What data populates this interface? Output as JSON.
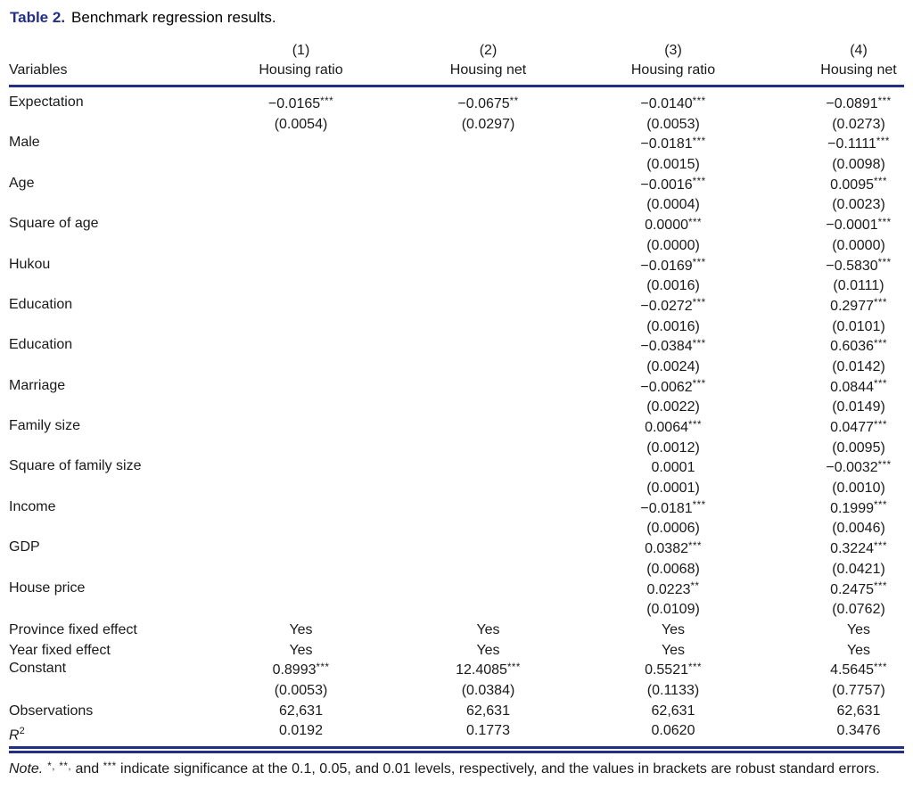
{
  "title": {
    "label": "Table 2.",
    "text": "Benchmark regression results."
  },
  "colors": {
    "accent": "#232e85"
  },
  "table": {
    "variables_header": "Variables",
    "columns": [
      {
        "num": "(1)",
        "name": "Housing ratio"
      },
      {
        "num": "(2)",
        "name": "Housing net"
      },
      {
        "num": "(3)",
        "name": "Housing ratio"
      },
      {
        "num": "(4)",
        "name": "Housing net"
      }
    ],
    "rows": [
      {
        "label": "Expectation",
        "cells": [
          {
            "v": "−0.0165",
            "s": "***",
            "se": "(0.0054)"
          },
          {
            "v": "−0.0675",
            "s": "**",
            "se": "(0.0297)"
          },
          {
            "v": "−0.0140",
            "s": "***",
            "se": "(0.0053)"
          },
          {
            "v": "−0.0891",
            "s": "***",
            "se": "(0.0273)"
          }
        ]
      },
      {
        "label": "Male",
        "cells": [
          {
            "v": "",
            "s": "",
            "se": ""
          },
          {
            "v": "",
            "s": "",
            "se": ""
          },
          {
            "v": "−0.0181",
            "s": "***",
            "se": "(0.0015)"
          },
          {
            "v": "−0.1111",
            "s": "***",
            "se": "(0.0098)"
          }
        ]
      },
      {
        "label": "Age",
        "cells": [
          {
            "v": "",
            "s": "",
            "se": ""
          },
          {
            "v": "",
            "s": "",
            "se": ""
          },
          {
            "v": "−0.0016",
            "s": "***",
            "se": "(0.0004)"
          },
          {
            "v": "0.0095",
            "s": "***",
            "se": "(0.0023)"
          }
        ]
      },
      {
        "label": "Square of age",
        "cells": [
          {
            "v": "",
            "s": "",
            "se": ""
          },
          {
            "v": "",
            "s": "",
            "se": ""
          },
          {
            "v": "0.0000",
            "s": "***",
            "se": "(0.0000)"
          },
          {
            "v": "−0.0001",
            "s": "***",
            "se": "(0.0000)"
          }
        ]
      },
      {
        "label": "Hukou",
        "cells": [
          {
            "v": "",
            "s": "",
            "se": ""
          },
          {
            "v": "",
            "s": "",
            "se": ""
          },
          {
            "v": "−0.0169",
            "s": "***",
            "se": "(0.0016)"
          },
          {
            "v": "−0.5830",
            "s": "***",
            "se": "(0.0111)"
          }
        ]
      },
      {
        "label": "Education",
        "cells": [
          {
            "v": "",
            "s": "",
            "se": ""
          },
          {
            "v": "",
            "s": "",
            "se": ""
          },
          {
            "v": "−0.0272",
            "s": "***",
            "se": "(0.0016)"
          },
          {
            "v": "0.2977",
            "s": "***",
            "se": "(0.0101)"
          }
        ]
      },
      {
        "label": "Education",
        "cells": [
          {
            "v": "",
            "s": "",
            "se": ""
          },
          {
            "v": "",
            "s": "",
            "se": ""
          },
          {
            "v": "−0.0384",
            "s": "***",
            "se": "(0.0024)"
          },
          {
            "v": "0.6036",
            "s": "***",
            "se": "(0.0142)"
          }
        ]
      },
      {
        "label": "Marriage",
        "cells": [
          {
            "v": "",
            "s": "",
            "se": ""
          },
          {
            "v": "",
            "s": "",
            "se": ""
          },
          {
            "v": "−0.0062",
            "s": "***",
            "se": "(0.0022)"
          },
          {
            "v": "0.0844",
            "s": "***",
            "se": "(0.0149)"
          }
        ]
      },
      {
        "label": "Family size",
        "cells": [
          {
            "v": "",
            "s": "",
            "se": ""
          },
          {
            "v": "",
            "s": "",
            "se": ""
          },
          {
            "v": "0.0064",
            "s": "***",
            "se": "(0.0012)"
          },
          {
            "v": "0.0477",
            "s": "***",
            "se": "(0.0095)"
          }
        ]
      },
      {
        "label": "Square of family size",
        "cells": [
          {
            "v": "",
            "s": "",
            "se": ""
          },
          {
            "v": "",
            "s": "",
            "se": ""
          },
          {
            "v": "0.0001",
            "s": "",
            "se": "(0.0001)"
          },
          {
            "v": "−0.0032",
            "s": "***",
            "se": "(0.0010)"
          }
        ]
      },
      {
        "label": "Income",
        "cells": [
          {
            "v": "",
            "s": "",
            "se": ""
          },
          {
            "v": "",
            "s": "",
            "se": ""
          },
          {
            "v": "−0.0181",
            "s": "***",
            "se": "(0.0006)"
          },
          {
            "v": "0.1999",
            "s": "***",
            "se": "(0.0046)"
          }
        ]
      },
      {
        "label": "GDP",
        "cells": [
          {
            "v": "",
            "s": "",
            "se": ""
          },
          {
            "v": "",
            "s": "",
            "se": ""
          },
          {
            "v": "0.0382",
            "s": "***",
            "se": "(0.0068)"
          },
          {
            "v": "0.3224",
            "s": "***",
            "se": "(0.0421)"
          }
        ]
      },
      {
        "label": "House price",
        "cells": [
          {
            "v": "",
            "s": "",
            "se": ""
          },
          {
            "v": "",
            "s": "",
            "se": ""
          },
          {
            "v": "0.0223",
            "s": "**",
            "se": "(0.0109)"
          },
          {
            "v": "0.2475",
            "s": "***",
            "se": "(0.0762)"
          }
        ]
      }
    ],
    "bottom": {
      "province": {
        "label": "Province fixed effect",
        "values": [
          "Yes",
          "Yes",
          "Yes",
          "Yes"
        ]
      },
      "year": {
        "label": "Year fixed effect",
        "values": [
          "Yes",
          "Yes",
          "Yes",
          "Yes"
        ]
      },
      "constant": {
        "label": "Constant",
        "cells": [
          {
            "v": "0.8993",
            "s": "***",
            "se": "(0.0053)"
          },
          {
            "v": "12.4085",
            "s": "***",
            "se": "(0.0384)"
          },
          {
            "v": "0.5521",
            "s": "***",
            "se": "(0.1133)"
          },
          {
            "v": "4.5645",
            "s": "***",
            "se": "(0.7757)"
          }
        ]
      },
      "observations": {
        "label": "Observations",
        "values": [
          "62,631",
          "62,631",
          "62,631",
          "62,631"
        ]
      },
      "r2": {
        "label_base": "R",
        "label_sup": "2",
        "values": [
          "0.0192",
          "0.1773",
          "0.0620",
          "0.3476"
        ]
      }
    }
  },
  "note": {
    "label": "Note.",
    "star1": "*,",
    "mid1": " ",
    "star2": "**,",
    "mid2": " and ",
    "star3": "***",
    "tail": " indicate significance at the 0.1, 0.05, and 0.01 levels, respectively, and the values in brackets are robust standard errors."
  }
}
